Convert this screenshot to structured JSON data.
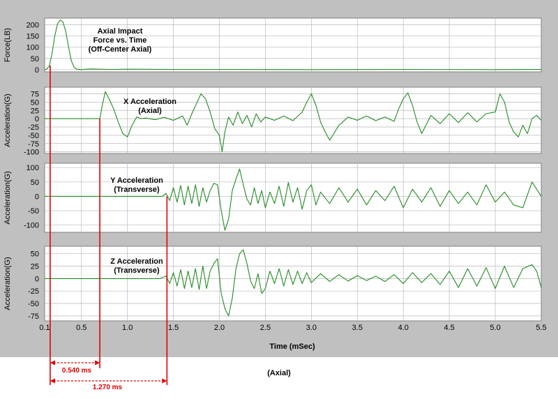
{
  "chart_data": [
    {
      "type": "line",
      "title_lines": [
        "Axial Impact",
        "Force vs. Time",
        "(Off-Center Axial)"
      ],
      "ylabel": "Force(LB)",
      "yticks": [
        200,
        150,
        100,
        50,
        0
      ],
      "ylim": [
        -10,
        230
      ],
      "xlim": [
        0.1,
        5.5
      ],
      "series": [
        {
          "color": "#228b22",
          "x": [
            0.1,
            0.12,
            0.15,
            0.18,
            0.21,
            0.24,
            0.27,
            0.3,
            0.33,
            0.36,
            0.39,
            0.42,
            0.45,
            0.5,
            0.6,
            0.8,
            1.0,
            1.5,
            2.0,
            3.0,
            4.0,
            5.0,
            5.5
          ],
          "y": [
            0,
            2,
            15,
            70,
            150,
            205,
            222,
            212,
            170,
            100,
            40,
            10,
            2,
            0,
            3,
            1,
            2,
            1,
            1,
            0,
            1,
            0,
            1
          ]
        }
      ]
    },
    {
      "type": "line",
      "title_lines": [
        "X Acceleration",
        "(Axial)"
      ],
      "ylabel": "Acceleration(G)",
      "yticks": [
        75,
        50,
        25,
        0,
        -25,
        -50,
        -75,
        -100
      ],
      "ylim": [
        -105,
        95
      ],
      "xlim": [
        0.1,
        5.5
      ],
      "series": [
        {
          "color": "#228b22",
          "x": [
            0.1,
            0.3,
            0.5,
            0.64,
            0.7,
            0.73,
            0.76,
            0.8,
            0.85,
            0.9,
            0.95,
            1.0,
            1.05,
            1.1,
            1.15,
            1.2,
            1.3,
            1.4,
            1.5,
            1.6,
            1.65,
            1.7,
            1.75,
            1.8,
            1.85,
            1.9,
            1.95,
            2.0,
            2.03,
            2.06,
            2.1,
            2.15,
            2.2,
            2.25,
            2.3,
            2.35,
            2.4,
            2.45,
            2.5,
            2.6,
            2.7,
            2.8,
            2.9,
            2.95,
            3.0,
            3.05,
            3.1,
            3.15,
            3.2,
            3.3,
            3.4,
            3.5,
            3.6,
            3.7,
            3.8,
            3.9,
            3.95,
            4.0,
            4.05,
            4.1,
            4.15,
            4.2,
            4.3,
            4.4,
            4.5,
            4.6,
            4.7,
            4.8,
            4.9,
            5.0,
            5.05,
            5.1,
            5.15,
            5.2,
            5.25,
            5.3,
            5.35,
            5.4,
            5.45,
            5.5
          ],
          "y": [
            0,
            0,
            0,
            0,
            0,
            45,
            82,
            60,
            30,
            -10,
            -45,
            -55,
            -20,
            5,
            0,
            2,
            -3,
            4,
            -5,
            8,
            -20,
            15,
            45,
            75,
            60,
            20,
            -30,
            -50,
            -100,
            -40,
            5,
            -20,
            20,
            -15,
            10,
            -25,
            15,
            -10,
            5,
            -5,
            8,
            -6,
            20,
            50,
            75,
            40,
            -10,
            -40,
            -65,
            -20,
            5,
            -5,
            8,
            -6,
            5,
            -8,
            30,
            60,
            78,
            40,
            -10,
            -45,
            10,
            -15,
            15,
            -12,
            18,
            -10,
            15,
            20,
            75,
            50,
            -10,
            -40,
            -55,
            -20,
            -45,
            0,
            10,
            -5
          ]
        }
      ]
    },
    {
      "type": "line",
      "title_lines": [
        "Y Acceleration",
        "(Transverse)"
      ],
      "ylabel": "Acceleration(G)",
      "yticks": [
        100,
        50,
        0,
        -50,
        -100
      ],
      "ylim": [
        -125,
        115
      ],
      "xlim": [
        0.1,
        5.5
      ],
      "series": [
        {
          "color": "#228b22",
          "x": [
            0.1,
            1.0,
            1.3,
            1.38,
            1.42,
            1.46,
            1.5,
            1.54,
            1.58,
            1.62,
            1.66,
            1.7,
            1.74,
            1.78,
            1.82,
            1.86,
            1.9,
            1.94,
            1.98,
            2.02,
            2.06,
            2.1,
            2.14,
            2.18,
            2.22,
            2.26,
            2.3,
            2.34,
            2.38,
            2.42,
            2.46,
            2.5,
            2.55,
            2.6,
            2.65,
            2.7,
            2.75,
            2.8,
            2.85,
            2.9,
            2.95,
            3.0,
            3.05,
            3.1,
            3.2,
            3.3,
            3.4,
            3.5,
            3.6,
            3.7,
            3.8,
            3.9,
            4.0,
            4.1,
            4.2,
            4.3,
            4.4,
            4.5,
            4.6,
            4.7,
            4.8,
            4.9,
            5.0,
            5.1,
            5.2,
            5.3,
            5.4,
            5.5
          ],
          "y": [
            0,
            0,
            0,
            0,
            10,
            -15,
            30,
            -20,
            38,
            -30,
            35,
            -25,
            40,
            -35,
            30,
            -20,
            20,
            45,
            40,
            -50,
            -118,
            -80,
            20,
            60,
            95,
            40,
            -10,
            -30,
            30,
            -25,
            20,
            -40,
            15,
            -25,
            35,
            -35,
            48,
            -20,
            30,
            -45,
            20,
            40,
            -30,
            15,
            -25,
            30,
            -20,
            25,
            -30,
            20,
            -15,
            35,
            -40,
            25,
            -20,
            30,
            -35,
            20,
            -25,
            15,
            -30,
            40,
            -20,
            15,
            -30,
            -40,
            50,
            0
          ]
        }
      ]
    },
    {
      "type": "line",
      "title_lines": [
        "Z Acceleration",
        "(Transverse)"
      ],
      "ylabel": "Acceleration(G)",
      "yticks": [
        50,
        25,
        0,
        -25,
        -50,
        -75
      ],
      "ylim": [
        -85,
        65
      ],
      "xlim": [
        0.1,
        5.5
      ],
      "series": [
        {
          "color": "#228b22",
          "x": [
            0.1,
            1.0,
            1.35,
            1.42,
            1.46,
            1.5,
            1.54,
            1.58,
            1.62,
            1.66,
            1.7,
            1.74,
            1.78,
            1.82,
            1.86,
            1.9,
            1.94,
            1.98,
            2.02,
            2.06,
            2.1,
            2.14,
            2.18,
            2.22,
            2.26,
            2.3,
            2.34,
            2.38,
            2.42,
            2.46,
            2.5,
            2.55,
            2.6,
            2.65,
            2.7,
            2.75,
            2.8,
            2.85,
            2.9,
            2.95,
            3.0,
            3.1,
            3.2,
            3.3,
            3.4,
            3.5,
            3.6,
            3.7,
            3.8,
            3.9,
            4.0,
            4.1,
            4.2,
            4.3,
            4.4,
            4.5,
            4.6,
            4.7,
            4.8,
            4.9,
            5.0,
            5.1,
            5.2,
            5.3,
            5.4,
            5.45,
            5.5
          ],
          "y": [
            0,
            0,
            0,
            5,
            -10,
            12,
            -15,
            18,
            -20,
            15,
            -18,
            20,
            -22,
            25,
            -20,
            15,
            30,
            40,
            -30,
            -60,
            -75,
            -40,
            20,
            50,
            58,
            30,
            -5,
            -20,
            10,
            -30,
            -20,
            15,
            -10,
            20,
            -15,
            18,
            -12,
            15,
            -10,
            12,
            -8,
            10,
            -6,
            8,
            -5,
            6,
            -4,
            5,
            -6,
            8,
            -10,
            12,
            -8,
            10,
            -12,
            15,
            -18,
            20,
            -15,
            22,
            -20,
            25,
            -18,
            20,
            28,
            15,
            -18
          ]
        }
      ]
    }
  ],
  "xaxis": {
    "label": "Time (mSec)",
    "ticks": [
      "0.1",
      "0.5",
      "1.0",
      "1.5",
      "2.0",
      "2.5",
      "3.0",
      "3.5",
      "4.0",
      "4.5",
      "5.0",
      "5.5"
    ],
    "tick_values": [
      0.1,
      0.5,
      1.0,
      1.5,
      2.0,
      2.5,
      3.0,
      3.5,
      4.0,
      4.5,
      5.0,
      5.5
    ]
  },
  "markers": {
    "start_time": 0.16,
    "x_onset_time": 0.7,
    "y_onset_time": 1.43,
    "span1_label": "0.540 ms",
    "span2_label": "1.270 ms",
    "footer_label": "(Axial)"
  },
  "colors": {
    "background": "#c0c0c0",
    "plot_area": "#ffffff",
    "trace": "#228b22",
    "marker": "#e00000",
    "grid": "#b8b8b8"
  }
}
